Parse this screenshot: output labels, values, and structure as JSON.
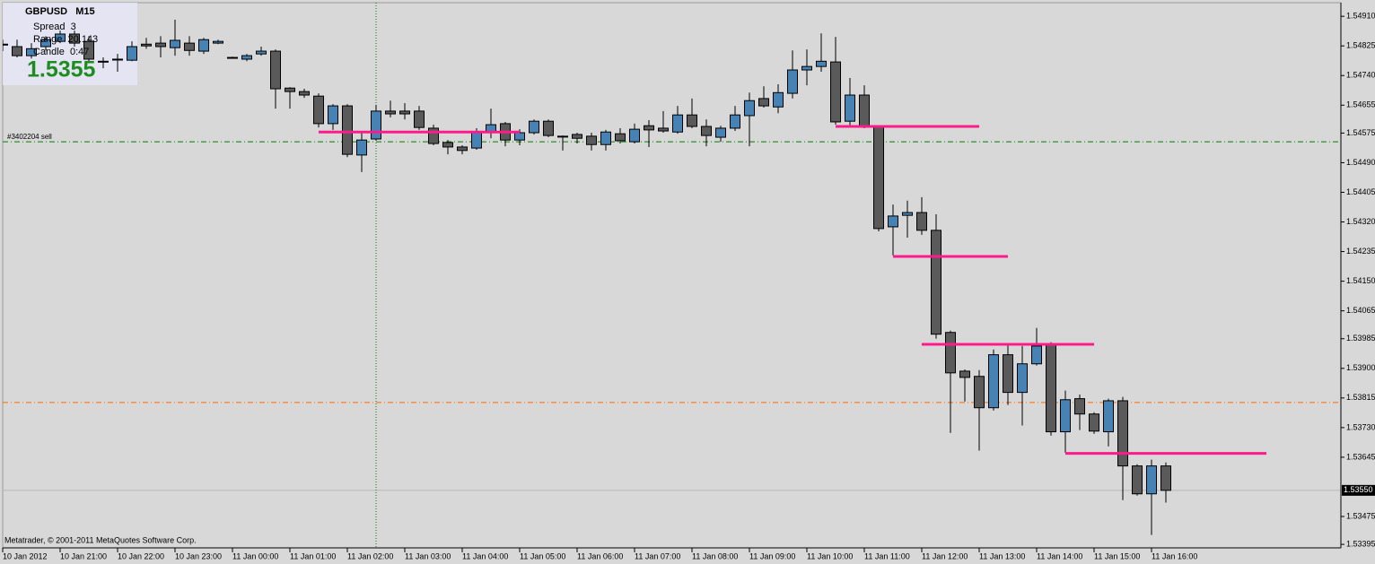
{
  "chart_data": {
    "type": "candlestick",
    "footer": "Metatrader, © 2001-2011 MetaQuotes Software Corp.",
    "info": {
      "title": "GBPUSD   M15",
      "spread": "Spread  3",
      "range": "Range  20.143",
      "candle": "Candle  0:47",
      "price": "1.5355"
    },
    "up_color": "#4682b4",
    "down_color": "#5a5a5a",
    "categories": [
      "10 Jan 2012",
      null,
      null,
      null,
      "10 Jan 21:00",
      null,
      null,
      null,
      "10 Jan 22:00",
      null,
      null,
      null,
      "10 Jan 23:00",
      null,
      null,
      null,
      "11 Jan 00:00",
      null,
      null,
      null,
      "11 Jan 01:00",
      null,
      null,
      null,
      "11 Jan 02:00",
      null,
      null,
      null,
      "11 Jan 03:00",
      null,
      null,
      null,
      "11 Jan 04:00",
      null,
      null,
      null,
      "11 Jan 05:00",
      null,
      null,
      null,
      "11 Jan 06:00",
      null,
      null,
      null,
      "11 Jan 07:00",
      null,
      null,
      null,
      "11 Jan 08:00",
      null,
      null,
      null,
      "11 Jan 09:00",
      null,
      null,
      null,
      "11 Jan 10:00",
      null,
      null,
      null,
      "11 Jan 11:00",
      null,
      null,
      null,
      "11 Jan 12:00",
      null,
      null,
      null,
      "11 Jan 13:00",
      null,
      null,
      null,
      "11 Jan 14:00",
      null,
      null,
      null,
      "11 Jan 15:00",
      null,
      null,
      null,
      "11 Jan 16:00",
      null
    ],
    "open": [
      1.5483,
      1.54823,
      1.54797,
      1.54823,
      1.54838,
      1.54859,
      1.54838,
      1.54781,
      1.54787,
      1.54784,
      1.5483,
      1.54833,
      1.5482,
      1.54833,
      1.5481,
      1.54833,
      1.54792,
      1.54787,
      1.54802,
      1.5481,
      1.54704,
      1.54694,
      1.54681,
      1.54602,
      1.54653,
      1.54512,
      1.54558,
      1.54638,
      1.54638,
      1.54638,
      1.54589,
      1.54548,
      1.54535,
      1.54532,
      1.54576,
      1.54602,
      1.54555,
      1.54576,
      1.54609,
      1.54566,
      1.54571,
      1.54566,
      1.54542,
      1.54573,
      1.5455,
      1.54596,
      1.54589,
      1.54578,
      1.54627,
      1.54594,
      1.54563,
      1.54589,
      1.54625,
      1.54674,
      1.5465,
      1.54689,
      1.54756,
      1.54766,
      1.54779,
      1.54609,
      1.54684,
      1.54594,
      1.54306,
      1.54339,
      1.54347,
      1.54296,
      1.54003,
      1.53892,
      1.53877,
      1.53787,
      1.53939,
      1.53831,
      1.53913,
      1.53967,
      1.53718,
      1.53813,
      1.53769,
      1.53718,
      1.53807,
      1.5362,
      1.5354,
      1.5362
    ],
    "high": [
      1.54843,
      1.54843,
      1.54833,
      1.54853,
      1.54869,
      1.54869,
      1.54853,
      1.54792,
      1.54802,
      1.54838,
      1.54848,
      1.54853,
      1.549,
      1.54853,
      1.54848,
      1.54843,
      1.54794,
      1.54802,
      1.54823,
      1.54815,
      1.54707,
      1.54702,
      1.54689,
      1.54658,
      1.54658,
      1.54581,
      1.54656,
      1.54668,
      1.54661,
      1.54653,
      1.54599,
      1.54555,
      1.5454,
      1.54589,
      1.54645,
      1.54607,
      1.54586,
      1.54614,
      1.54614,
      1.54568,
      1.54576,
      1.54576,
      1.54584,
      1.54589,
      1.54602,
      1.54612,
      1.54638,
      1.54653,
      1.54674,
      1.54614,
      1.54596,
      1.54653,
      1.54691,
      1.54709,
      1.54715,
      1.54812,
      1.54815,
      1.54861,
      1.54851,
      1.54733,
      1.54712,
      1.54596,
      1.5437,
      1.54381,
      1.54391,
      1.54342,
      1.54008,
      1.53897,
      1.53895,
      1.53954,
      1.53967,
      1.53964,
      1.54016,
      1.53975,
      1.53836,
      1.53825,
      1.53774,
      1.53813,
      1.53818,
      1.53625,
      1.53638,
      1.5363
    ],
    "low": [
      1.5481,
      1.54792,
      1.54789,
      1.54812,
      1.54833,
      1.54823,
      1.54776,
      1.54761,
      1.54751,
      1.54781,
      1.54817,
      1.54792,
      1.54797,
      1.54797,
      1.54802,
      1.5483,
      1.54789,
      1.54781,
      1.54797,
      1.54645,
      1.54645,
      1.54676,
      1.54591,
      1.54584,
      1.54506,
      1.54463,
      1.54553,
      1.5462,
      1.54614,
      1.54584,
      1.5454,
      1.54514,
      1.54514,
      1.54527,
      1.5456,
      1.54537,
      1.5454,
      1.54571,
      1.54563,
      1.54525,
      1.54545,
      1.54525,
      1.54525,
      1.54545,
      1.54545,
      1.54535,
      1.54576,
      1.54573,
      1.54589,
      1.54537,
      1.5455,
      1.54581,
      1.54537,
      1.54648,
      1.54632,
      1.54674,
      1.54712,
      1.54751,
      1.54599,
      1.54596,
      1.54589,
      1.54293,
      1.54224,
      1.54275,
      1.54283,
      1.53985,
      1.53715,
      1.53805,
      1.53664,
      1.53779,
      1.53795,
      1.53736,
      1.53908,
      1.53707,
      1.53658,
      1.53723,
      1.53712,
      1.53676,
      1.53522,
      1.53535,
      1.53422,
      1.53515
    ],
    "close": [
      1.5483,
      1.54797,
      1.54817,
      1.54843,
      1.54859,
      1.54833,
      1.54787,
      1.54781,
      1.54787,
      1.54823,
      1.54825,
      1.54823,
      1.54841,
      1.54812,
      1.54843,
      1.54838,
      1.54792,
      1.54797,
      1.5481,
      1.54702,
      1.54694,
      1.54684,
      1.54602,
      1.54653,
      1.54514,
      1.54555,
      1.54638,
      1.5463,
      1.5463,
      1.54591,
      1.54545,
      1.54535,
      1.54525,
      1.54576,
      1.54599,
      1.54555,
      1.54576,
      1.54609,
      1.54568,
      1.54566,
      1.5456,
      1.54542,
      1.54578,
      1.54553,
      1.54586,
      1.54584,
      1.54581,
      1.54627,
      1.54594,
      1.54568,
      1.54589,
      1.54627,
      1.54668,
      1.54653,
      1.54691,
      1.54756,
      1.54766,
      1.54781,
      1.54607,
      1.54684,
      1.54594,
      1.54301,
      1.54337,
      1.54347,
      1.54296,
      1.53998,
      1.53887,
      1.53874,
      1.53787,
      1.53939,
      1.53831,
      1.53913,
      1.53964,
      1.53718,
      1.5381,
      1.53769,
      1.5372,
      1.53807,
      1.5362,
      1.5354,
      1.5362,
      1.5355
    ],
    "ylim": [
      1.53385,
      1.54949
    ],
    "yticks": [
      {
        "value": 1.5491,
        "label": "1.54910"
      },
      1.54825,
      {
        "value": 1.5474,
        "label": "1.54740"
      },
      1.54655,
      1.54575,
      {
        "value": 1.5449,
        "label": "1.54490"
      },
      1.54405,
      {
        "value": 1.5432,
        "label": "1.54320"
      },
      1.54235,
      {
        "value": 1.5415,
        "label": "1.54150"
      },
      1.54065,
      1.53985,
      {
        "value": 1.539,
        "label": "1.53900"
      },
      1.53815,
      {
        "value": 1.5373,
        "label": "1.53730"
      },
      1.53645,
      1.53475,
      1.53395
    ],
    "current_price": {
      "value": 1.5355,
      "label": "1.53550"
    },
    "hlines": [
      {
        "value": 1.5455,
        "color": "#008000",
        "style": "dashdot",
        "label": "#3402204 sell"
      },
      {
        "value": 1.53802,
        "color": "#ff6a00",
        "style": "dashdot"
      },
      {
        "value": 1.5355,
        "color": "#b8b8b8",
        "style": "solid"
      }
    ],
    "vline": {
      "bar": 26,
      "color": "#008000"
    },
    "levels_color": "#ff1a8c",
    "levels": [
      {
        "value": 1.54578,
        "from": 22,
        "to": 36
      },
      {
        "value": 1.54594,
        "from": 58,
        "to": 68
      },
      {
        "value": 1.54221,
        "from": 62,
        "to": 70
      },
      {
        "value": 1.53969,
        "from": 64,
        "to": 76
      },
      {
        "value": 1.53656,
        "from": 74,
        "to": 88
      }
    ]
  }
}
